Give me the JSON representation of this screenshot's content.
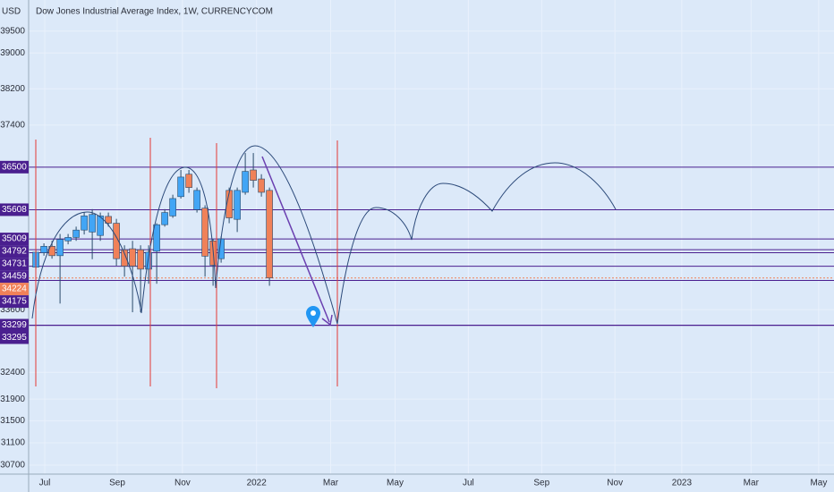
{
  "chart_data": {
    "type": "candlestick",
    "title": "Dow Jones Industrial Average Index, 1W, CURRENCYCOM",
    "currency": "USD",
    "log_scale": true,
    "grid": true,
    "up_color": "#42a5f5",
    "down_color": "#f08159",
    "x": [
      0,
      1,
      2,
      3,
      4,
      5,
      6,
      7,
      8,
      9,
      10,
      11,
      12,
      13,
      14,
      15,
      16,
      17,
      18,
      19,
      20,
      21,
      22,
      23,
      24,
      25,
      26,
      27,
      28,
      29
    ],
    "open": [
      34440,
      34730,
      34860,
      34670,
      34970,
      35040,
      35190,
      35150,
      35080,
      35470,
      35330,
      34790,
      34810,
      34790,
      34400,
      34760,
      35300,
      35480,
      35880,
      36350,
      35610,
      35640,
      34970,
      34610,
      36010,
      35410,
      35970,
      36440,
      36250,
      36010
    ],
    "high": [
      34790,
      34920,
      34970,
      35110,
      35110,
      35260,
      35550,
      35620,
      35550,
      35550,
      35420,
      34880,
      34970,
      34880,
      34880,
      35330,
      35620,
      35920,
      36440,
      36440,
      36070,
      35700,
      35010,
      35060,
      36070,
      36070,
      36800,
      36800,
      36350,
      36070
    ],
    "low": [
      34400,
      34670,
      34610,
      33720,
      34900,
      34970,
      35100,
      34600,
      34970,
      35260,
      34470,
      34250,
      33550,
      33550,
      34110,
      34110,
      35260,
      35440,
      35840,
      35960,
      35550,
      34250,
      34070,
      34530,
      35330,
      35150,
      35920,
      36070,
      35880,
      34070
    ],
    "close": [
      34740,
      34860,
      34670,
      35000,
      35040,
      35190,
      35480,
      35510,
      35480,
      35330,
      34610,
      34460,
      34460,
      34400,
      34740,
      35300,
      35550,
      35840,
      36290,
      36070,
      36010,
      34660,
      34480,
      35010,
      35440,
      36010,
      36410,
      36220,
      35970,
      34224
    ],
    "xlim": [
      -0.9,
      99.1
    ],
    "xticks": [
      {
        "value": 1.1,
        "label": "Jul"
      },
      {
        "value": 10.1,
        "label": "Sep"
      },
      {
        "value": 18.2,
        "label": "Nov"
      },
      {
        "value": 27.4,
        "label": "2022"
      },
      {
        "value": 36.6,
        "label": "Mar"
      },
      {
        "value": 44.6,
        "label": "May"
      },
      {
        "value": 53.7,
        "label": "Jul"
      },
      {
        "value": 62.8,
        "label": "Sep"
      },
      {
        "value": 71.9,
        "label": "Nov"
      },
      {
        "value": 80.2,
        "label": "2023"
      },
      {
        "value": 88.8,
        "label": "Mar"
      },
      {
        "value": 97.2,
        "label": "May"
      }
    ],
    "ylim": [
      30540,
      40220
    ],
    "yticks": [
      39500,
      39000,
      38200,
      37400,
      33600,
      32400,
      31900,
      31500,
      31100,
      30700
    ],
    "levels": [
      {
        "value": 36500,
        "color": "#4a1f8f"
      },
      {
        "value": 35608,
        "color": "#4a1f8f"
      },
      {
        "value": 35009,
        "color": "#4a1f8f"
      },
      {
        "value": 34792,
        "color": "#4a1f8f"
      },
      {
        "value": 34731,
        "color": "#4a1f8f"
      },
      {
        "value": 34459,
        "color": "#4a1f8f"
      },
      {
        "value": 34224,
        "color": "#f08159"
      },
      {
        "value": 34175,
        "color": "#4a1f8f"
      },
      {
        "value": 33299,
        "color": "#4a1f8f"
      },
      {
        "value": 33295,
        "color": "#4a1f8f"
      }
    ]
  }
}
